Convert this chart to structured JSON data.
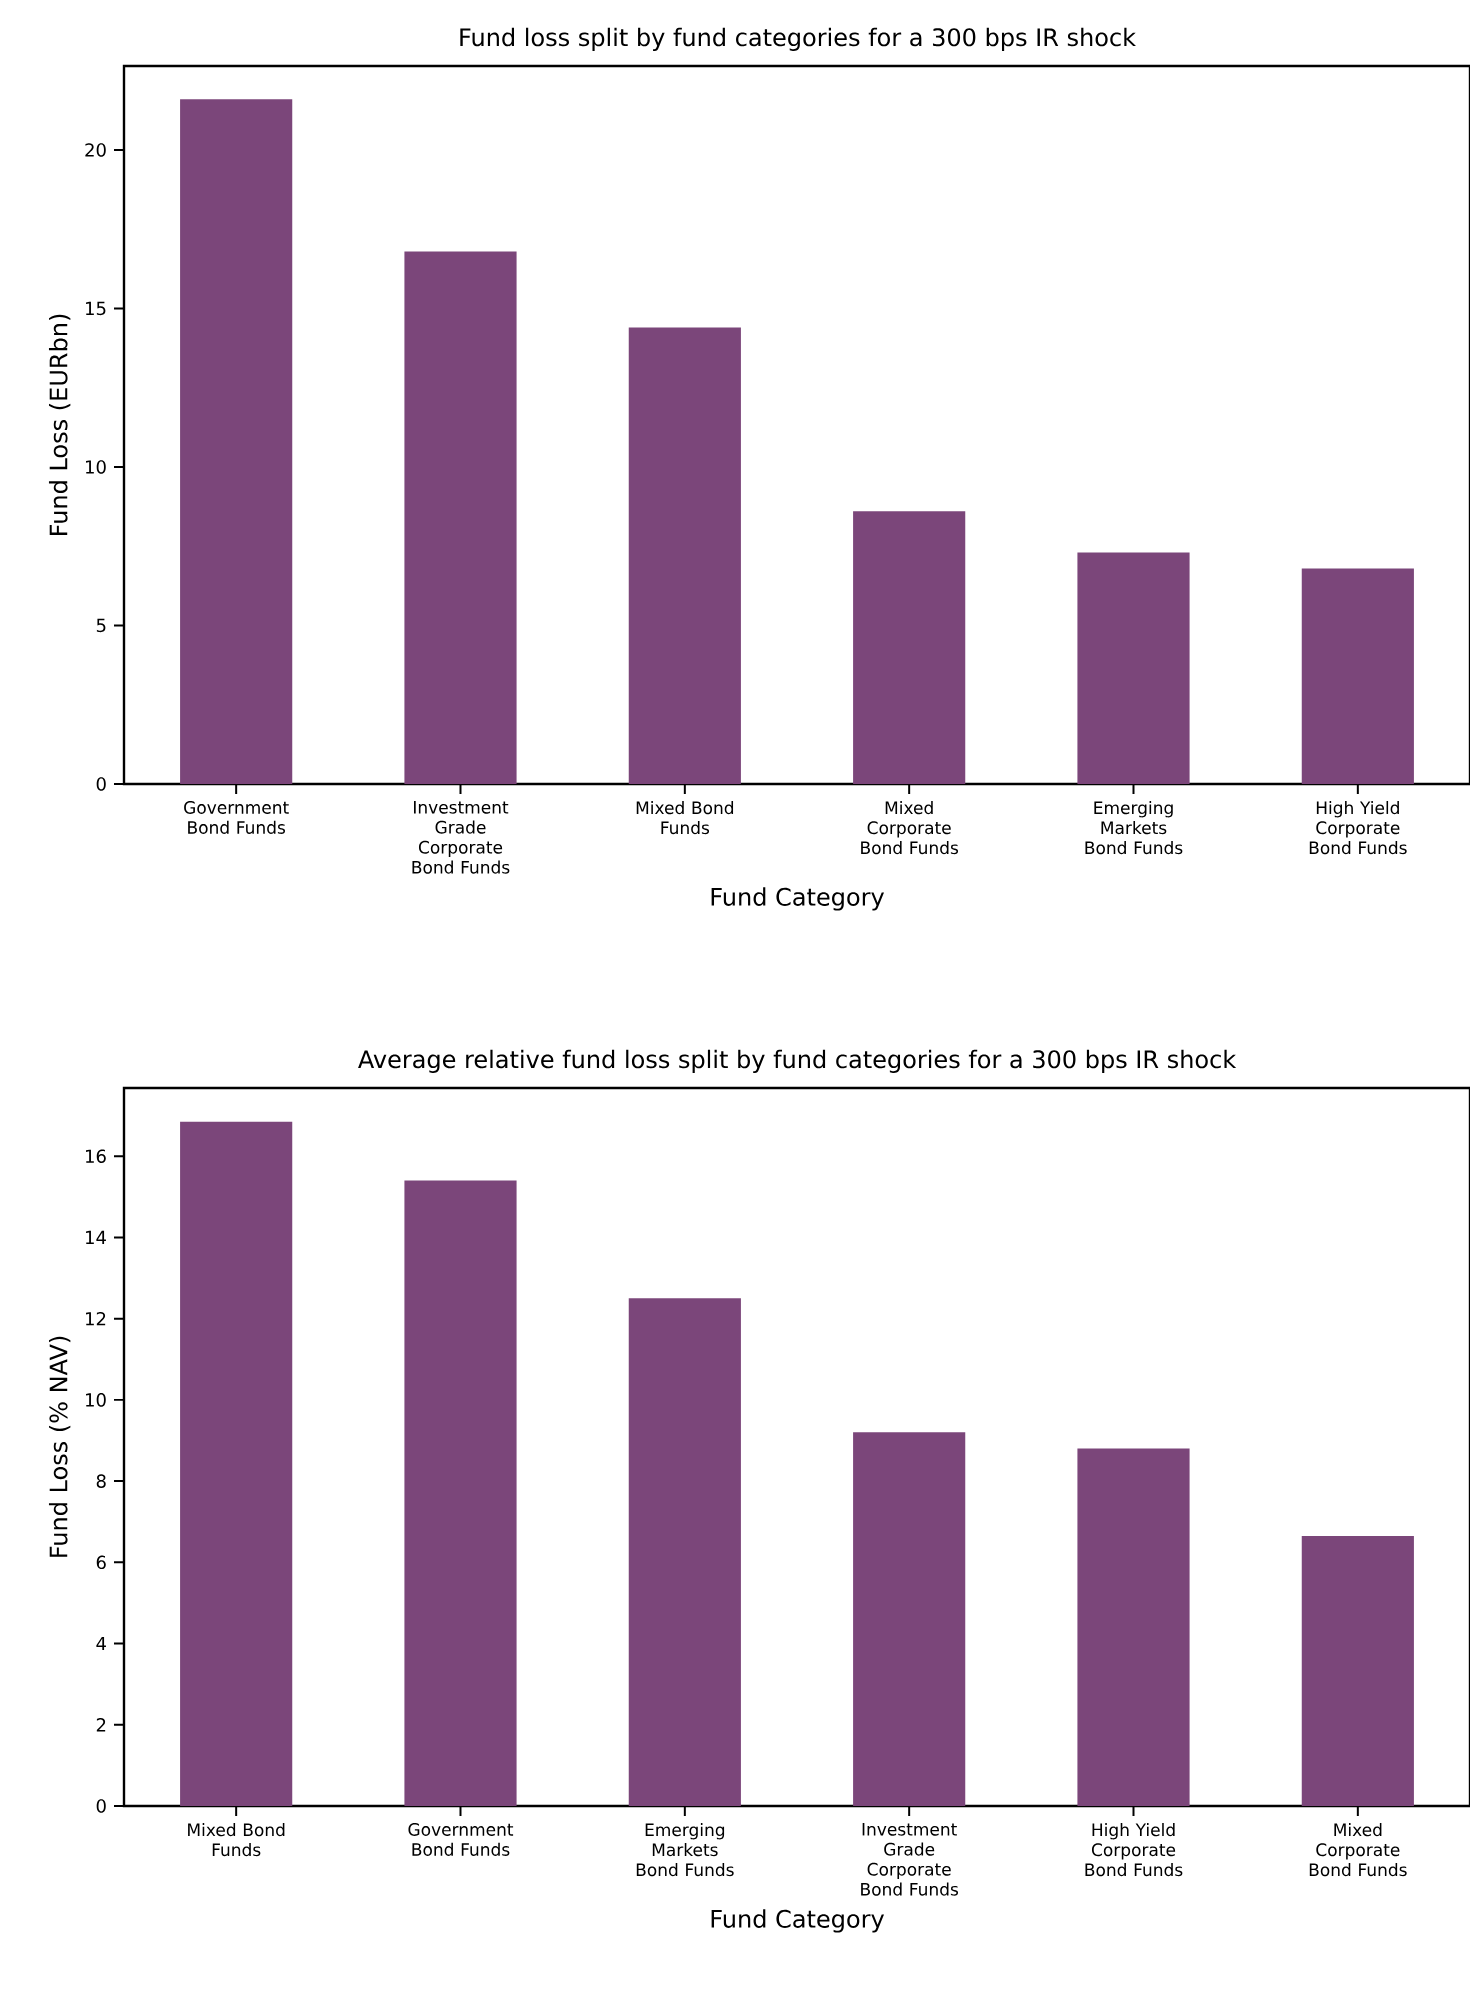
{
  "chart_data": [
    {
      "type": "bar",
      "title": "Fund loss split by fund categories for a 300 bps IR shock",
      "xlabel": "Fund Category",
      "ylabel": "Fund Loss (EURbn)",
      "categories": [
        "Government Bond Funds",
        "Investment Grade Corporate Bond Funds",
        "Mixed Bond Funds",
        "Mixed Corporate Bond Funds",
        "Emerging Markets Bond Funds",
        "High Yield Corporate Bond Funds"
      ],
      "values": [
        21.6,
        16.8,
        14.4,
        8.6,
        7.3,
        6.8
      ],
      "color": "#7b467a",
      "ylim": [
        0,
        22.65
      ],
      "yticks": [
        0,
        5,
        10,
        15,
        20
      ]
    },
    {
      "type": "bar",
      "title": "Average relative fund loss split by fund categories for a 300 bps IR shock",
      "xlabel": "Fund Category",
      "ylabel": "Fund Loss (% NAV)",
      "categories": [
        "Mixed Bond Funds",
        "Government Bond Funds",
        "Emerging Markets Bond Funds",
        "Investment Grade Corporate Bond Funds",
        "High Yield Corporate Bond Funds",
        "Mixed Corporate Bond Funds"
      ],
      "values": [
        16.85,
        15.4,
        12.5,
        9.2,
        8.8,
        6.65
      ],
      "color": "#7b467a",
      "ylim": [
        0,
        17.68
      ],
      "yticks": [
        0,
        2,
        4,
        6,
        8,
        10,
        12,
        14,
        16
      ]
    }
  ]
}
